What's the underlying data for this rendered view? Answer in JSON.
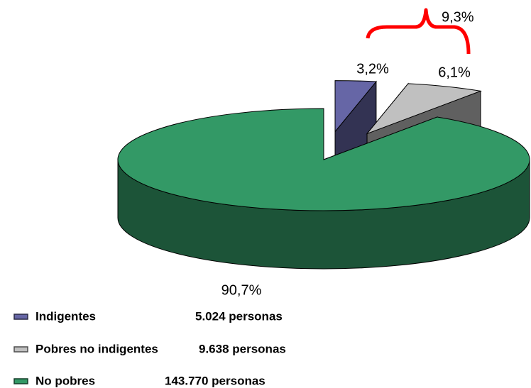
{
  "chart_data": {
    "type": "pie",
    "labels": [
      "Indigentes",
      "Pobres no indigentes",
      "No pobres"
    ],
    "values": [
      3.2,
      6.1,
      90.7
    ],
    "value_labels": [
      "3,2%",
      "6,1%",
      "90,7%"
    ],
    "colors": [
      "#6666a6",
      "#c0c0c0",
      "#339966"
    ],
    "exploded": [
      true,
      true,
      false
    ],
    "counts": [
      5024,
      9638,
      143770
    ],
    "count_labels": [
      "5.024 personas",
      "9.638 personas",
      "143.770 personas"
    ],
    "bracket": {
      "value": 9.3,
      "label": "9,3%"
    }
  }
}
